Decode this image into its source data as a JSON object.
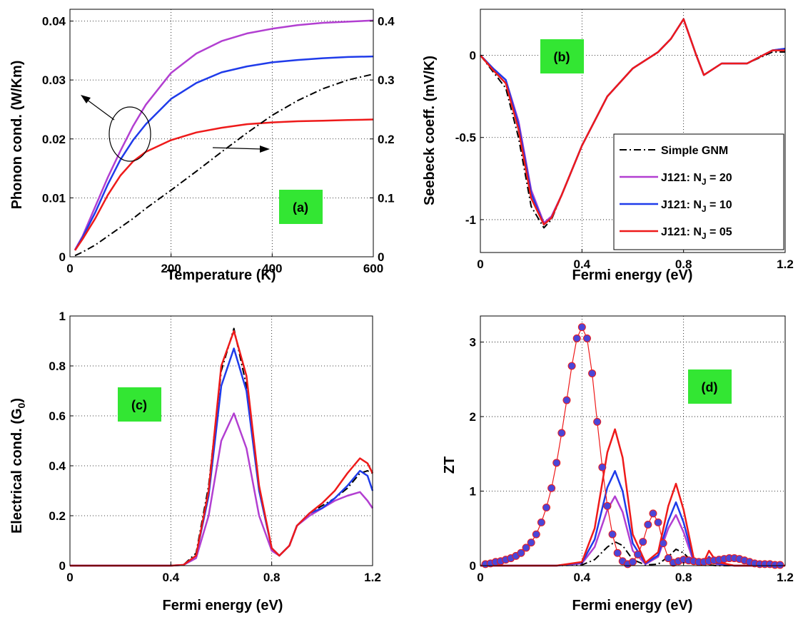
{
  "colors": {
    "magenta": "#b23fd1",
    "blue": "#1f3bea",
    "red": "#ee1a1a",
    "black": "#000000",
    "label_bg": "#33e633",
    "dots": "#4a46d8"
  },
  "chart_data": [
    {
      "id": "a",
      "type": "line",
      "label": "(a)",
      "xlabel": "Temperature (K)",
      "ylabel": "Phonon cond. (W/Km)",
      "xlim": [
        0,
        600
      ],
      "ylim": [
        0,
        0.042
      ],
      "y2lim": [
        0,
        0.42
      ],
      "grid": true,
      "xticks": [
        "0",
        "200",
        "400",
        "600"
      ],
      "yticks": [
        "0",
        "0.01",
        "0.02",
        "0.03",
        "0.04"
      ],
      "y2ticks": [
        "0",
        "0.1",
        "0.2",
        "0.3",
        "0.4"
      ],
      "x": [
        10,
        25,
        50,
        75,
        100,
        125,
        150,
        200,
        250,
        300,
        350,
        400,
        450,
        500,
        550,
        600
      ],
      "series": [
        {
          "key": "nj20",
          "color": "magenta",
          "axis": "left",
          "values": [
            0.0012,
            0.0035,
            0.0085,
            0.0135,
            0.018,
            0.0222,
            0.0258,
            0.0312,
            0.0345,
            0.0366,
            0.0379,
            0.0387,
            0.0393,
            0.0397,
            0.0399,
            0.0401
          ]
        },
        {
          "key": "nj10",
          "color": "blue",
          "axis": "left",
          "values": [
            0.0011,
            0.0033,
            0.0075,
            0.0123,
            0.0165,
            0.0198,
            0.0225,
            0.0268,
            0.0295,
            0.0313,
            0.0323,
            0.033,
            0.0334,
            0.0337,
            0.0339,
            0.034
          ]
        },
        {
          "key": "nj05",
          "color": "red",
          "axis": "left",
          "values": [
            0.0011,
            0.003,
            0.0065,
            0.0105,
            0.0138,
            0.0162,
            0.0178,
            0.0198,
            0.0211,
            0.0219,
            0.0225,
            0.0228,
            0.023,
            0.0231,
            0.0232,
            0.0233
          ]
        },
        {
          "key": "gnm",
          "color": "black",
          "axis": "right",
          "dash": "10,4,2,4",
          "values": [
            0.002,
            0.008,
            0.02,
            0.035,
            0.05,
            0.065,
            0.082,
            0.113,
            0.145,
            0.178,
            0.21,
            0.24,
            0.265,
            0.285,
            0.3,
            0.31
          ]
        }
      ],
      "annotations": [
        "circle-with-left-arrow",
        "right-arrow"
      ]
    },
    {
      "id": "b",
      "type": "line",
      "label": "(b)",
      "xlabel": "Fermi energy (eV)",
      "ylabel": "Seebeck coeff. (mV/K)",
      "xlim": [
        0,
        1.2
      ],
      "ylim": [
        -1.2,
        0.28
      ],
      "grid": true,
      "xticks": [
        "0",
        "0.4",
        "0.8",
        "1.2"
      ],
      "yticks": [
        "-1",
        "-0.5",
        "0"
      ],
      "x": [
        0,
        0.05,
        0.1,
        0.15,
        0.2,
        0.25,
        0.28,
        0.32,
        0.4,
        0.5,
        0.6,
        0.7,
        0.75,
        0.8,
        0.85,
        0.88,
        0.95,
        1.05,
        1.15,
        1.2
      ],
      "series": [
        {
          "key": "gnm",
          "name": "Simple GNM",
          "color": "black",
          "dash": "10,4,2,4",
          "values": [
            0.0,
            -0.1,
            -0.2,
            -0.5,
            -0.92,
            -1.05,
            -1.0,
            -0.85,
            -0.55,
            -0.25,
            -0.08,
            0.02,
            0.1,
            0.22,
            0.0,
            -0.12,
            -0.05,
            -0.05,
            0.02,
            0.02
          ]
        },
        {
          "key": "nj20",
          "name": "J121: N_J = 20",
          "color": "magenta",
          "values": [
            0.0,
            -0.08,
            -0.15,
            -0.4,
            -0.82,
            -1.02,
            -0.98,
            -0.85,
            -0.55,
            -0.25,
            -0.08,
            0.02,
            0.1,
            0.22,
            0.0,
            -0.12,
            -0.05,
            -0.05,
            0.03,
            0.04
          ]
        },
        {
          "key": "nj10",
          "name": "J121: N_J = 10",
          "color": "blue",
          "values": [
            0.0,
            -0.08,
            -0.15,
            -0.42,
            -0.84,
            -1.03,
            -0.99,
            -0.85,
            -0.55,
            -0.25,
            -0.08,
            0.02,
            0.1,
            0.22,
            0.0,
            -0.12,
            -0.05,
            -0.05,
            0.03,
            0.04
          ]
        },
        {
          "key": "nj05",
          "name": "J121: N_J = 05",
          "color": "red",
          "values": [
            0.0,
            -0.09,
            -0.17,
            -0.45,
            -0.87,
            -1.03,
            -0.99,
            -0.85,
            -0.55,
            -0.25,
            -0.08,
            0.02,
            0.1,
            0.22,
            0.0,
            -0.12,
            -0.05,
            -0.05,
            0.03,
            0.03
          ]
        }
      ],
      "legend": {
        "position": "lower-right",
        "entries": [
          {
            "key": "gnm",
            "prefix": "Simple GNM",
            "sub": "",
            "suffix": ""
          },
          {
            "key": "nj20",
            "prefix": "J121: N",
            "sub": "J",
            "suffix": " = 20"
          },
          {
            "key": "nj10",
            "prefix": "J121: N",
            "sub": "J",
            "suffix": " = 10"
          },
          {
            "key": "nj05",
            "prefix": "J121: N",
            "sub": "J",
            "suffix": " = 05"
          }
        ]
      }
    },
    {
      "id": "c",
      "type": "line",
      "label": "(c)",
      "xlabel": "Fermi energy (eV)",
      "ylabel_prefix": "Electrical cond. (G",
      "ylabel_sub": "0",
      "ylabel_suffix": ")",
      "xlim": [
        0,
        1.2
      ],
      "ylim": [
        0,
        1
      ],
      "grid": true,
      "xticks": [
        "0",
        "0.4",
        "0.8",
        "1.2"
      ],
      "yticks": [
        "0",
        "0.2",
        "0.4",
        "0.6",
        "0.8",
        "1"
      ],
      "x": [
        0,
        0.4,
        0.45,
        0.5,
        0.55,
        0.6,
        0.65,
        0.7,
        0.75,
        0.8,
        0.83,
        0.87,
        0.9,
        0.95,
        1.0,
        1.05,
        1.1,
        1.15,
        1.18,
        1.2
      ],
      "series": [
        {
          "key": "gnm",
          "color": "black",
          "dash": "10,4,2,4",
          "values": [
            0,
            0,
            0.003,
            0.05,
            0.32,
            0.78,
            0.95,
            0.72,
            0.3,
            0.07,
            0.04,
            0.08,
            0.16,
            0.21,
            0.24,
            0.27,
            0.31,
            0.37,
            0.38,
            0.37
          ]
        },
        {
          "key": "nj20",
          "color": "magenta",
          "values": [
            0,
            0,
            0.003,
            0.03,
            0.2,
            0.5,
            0.61,
            0.47,
            0.2,
            0.06,
            0.04,
            0.08,
            0.16,
            0.2,
            0.23,
            0.26,
            0.28,
            0.295,
            0.26,
            0.23
          ]
        },
        {
          "key": "nj10",
          "color": "blue",
          "values": [
            0,
            0,
            0.003,
            0.04,
            0.28,
            0.72,
            0.87,
            0.7,
            0.3,
            0.07,
            0.04,
            0.08,
            0.16,
            0.21,
            0.23,
            0.27,
            0.32,
            0.38,
            0.36,
            0.3
          ]
        },
        {
          "key": "nj05",
          "color": "red",
          "values": [
            0,
            0,
            0.003,
            0.04,
            0.3,
            0.8,
            0.94,
            0.76,
            0.32,
            0.07,
            0.04,
            0.08,
            0.16,
            0.21,
            0.25,
            0.3,
            0.37,
            0.43,
            0.41,
            0.37
          ]
        }
      ]
    },
    {
      "id": "d",
      "type": "line",
      "label": "(d)",
      "xlabel": "Fermi energy (eV)",
      "ylabel": "ZT",
      "xlim": [
        0,
        1.2
      ],
      "ylim": [
        0,
        3.35
      ],
      "grid": true,
      "xticks": [
        "0",
        "0.4",
        "0.8",
        "1.2"
      ],
      "yticks": [
        "0",
        "1",
        "2",
        "3"
      ],
      "x": [
        0,
        0.3,
        0.4,
        0.45,
        0.5,
        0.53,
        0.56,
        0.6,
        0.65,
        0.7,
        0.74,
        0.77,
        0.8,
        0.84,
        0.88,
        0.9,
        0.93,
        1.0,
        1.2
      ],
      "series": [
        {
          "key": "gnm",
          "color": "black",
          "dash": "10,4,2,4",
          "values": [
            0,
            0,
            0.01,
            0.08,
            0.25,
            0.32,
            0.27,
            0.08,
            0.01,
            0.02,
            0.12,
            0.22,
            0.17,
            0.03,
            0.0,
            0.01,
            0.0,
            0.0,
            0.0
          ]
        },
        {
          "key": "nj20",
          "color": "magenta",
          "values": [
            0,
            0,
            0.03,
            0.25,
            0.75,
            0.93,
            0.72,
            0.2,
            0.02,
            0.12,
            0.5,
            0.68,
            0.45,
            0.05,
            0.02,
            0.08,
            0.02,
            0.0,
            0.0
          ]
        },
        {
          "key": "nj10",
          "color": "blue",
          "values": [
            0,
            0,
            0.04,
            0.35,
            1.05,
            1.27,
            1.0,
            0.3,
            0.03,
            0.14,
            0.6,
            0.85,
            0.58,
            0.07,
            0.03,
            0.12,
            0.03,
            0.0,
            0.0
          ]
        },
        {
          "key": "nj05",
          "color": "red",
          "values": [
            0,
            0,
            0.05,
            0.5,
            1.52,
            1.83,
            1.45,
            0.42,
            0.04,
            0.18,
            0.8,
            1.1,
            0.75,
            0.1,
            0.05,
            0.2,
            0.05,
            0.0,
            0.0
          ]
        }
      ],
      "marker_series": {
        "color": "dots",
        "line_color": "red",
        "x": [
          0.02,
          0.04,
          0.06,
          0.08,
          0.1,
          0.12,
          0.14,
          0.16,
          0.18,
          0.2,
          0.22,
          0.24,
          0.26,
          0.28,
          0.3,
          0.32,
          0.34,
          0.36,
          0.38,
          0.4,
          0.42,
          0.44,
          0.46,
          0.48,
          0.5,
          0.52,
          0.54,
          0.56,
          0.58,
          0.6,
          0.62,
          0.64,
          0.66,
          0.68,
          0.7,
          0.72,
          0.74,
          0.76,
          0.78,
          0.8,
          0.82,
          0.84,
          0.86,
          0.88,
          0.9,
          0.92,
          0.94,
          0.96,
          0.98,
          1.0,
          1.02,
          1.04,
          1.06,
          1.08,
          1.1,
          1.12,
          1.14,
          1.16,
          1.18
        ],
        "values": [
          0.02,
          0.03,
          0.05,
          0.06,
          0.08,
          0.1,
          0.13,
          0.17,
          0.24,
          0.31,
          0.42,
          0.58,
          0.78,
          1.04,
          1.38,
          1.78,
          2.22,
          2.68,
          3.05,
          3.2,
          3.05,
          2.58,
          1.93,
          1.32,
          0.8,
          0.42,
          0.17,
          0.06,
          0.02,
          0.05,
          0.15,
          0.32,
          0.55,
          0.7,
          0.58,
          0.3,
          0.1,
          0.04,
          0.06,
          0.08,
          0.07,
          0.06,
          0.05,
          0.05,
          0.06,
          0.07,
          0.08,
          0.09,
          0.1,
          0.1,
          0.09,
          0.07,
          0.05,
          0.03,
          0.02,
          0.02,
          0.02,
          0.01,
          0.01
        ]
      }
    }
  ]
}
